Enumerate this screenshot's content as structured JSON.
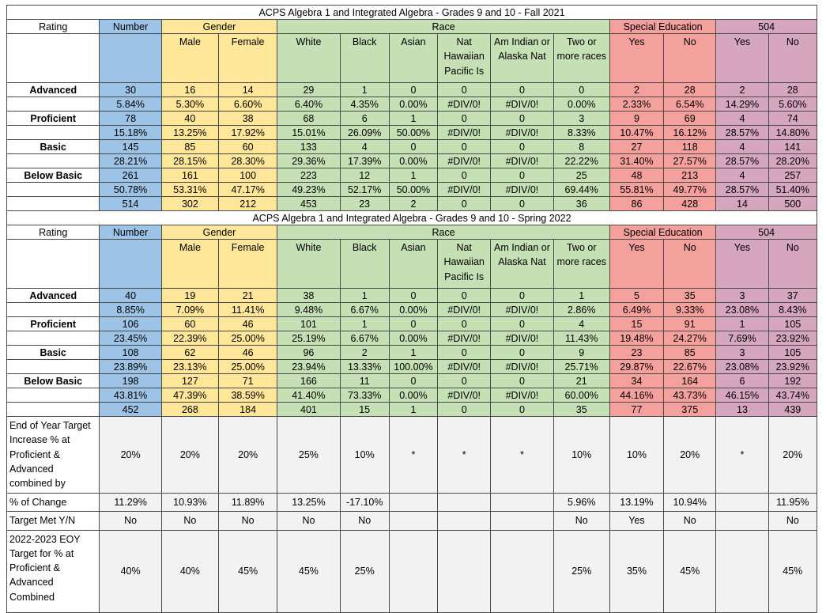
{
  "columns": [
    "Number",
    "Male",
    "Female",
    "White",
    "Black",
    "Asian",
    "Nat Hawaiian Pacific Is",
    "Am Indian or Alaska Nat",
    "Two or more races",
    "Yes",
    "No",
    "Yes",
    "No"
  ],
  "groups": {
    "rating": "Rating",
    "number": "Number",
    "gender": "Gender",
    "race": "Race",
    "sped": "Special Education",
    "s504": "504"
  },
  "subheads": {
    "male": "Male",
    "female": "Female",
    "white": "White",
    "black": "Black",
    "asian": "Asian",
    "nathaw": "Nat Hawaiian Pacific Is",
    "amind": "Am Indian or Alaska Nat",
    "two": "Two or more races",
    "sped_yes": "Yes",
    "sped_no": "No",
    "s504_yes": "Yes",
    "s504_no": "No"
  },
  "sections": [
    {
      "title": "ACPS Algebra 1 and Integrated Algebra - Grades 9 and 10 - Fall 2021",
      "ratings": [
        {
          "label": "Advanced",
          "count": [
            "30",
            "16",
            "14",
            "29",
            "1",
            "0",
            "0",
            "0",
            "0",
            "2",
            "28",
            "2",
            "28"
          ],
          "pct": [
            "5.84%",
            "5.30%",
            "6.60%",
            "6.40%",
            "4.35%",
            "0.00%",
            "#DIV/0!",
            "#DIV/0!",
            "0.00%",
            "2.33%",
            "6.54%",
            "14.29%",
            "5.60%"
          ]
        },
        {
          "label": "Proficient",
          "count": [
            "78",
            "40",
            "38",
            "68",
            "6",
            "1",
            "0",
            "0",
            "3",
            "9",
            "69",
            "4",
            "74"
          ],
          "pct": [
            "15.18%",
            "13.25%",
            "17.92%",
            "15.01%",
            "26.09%",
            "50.00%",
            "#DIV/0!",
            "#DIV/0!",
            "8.33%",
            "10.47%",
            "16.12%",
            "28.57%",
            "14.80%"
          ]
        },
        {
          "label": "Basic",
          "count": [
            "145",
            "85",
            "60",
            "133",
            "4",
            "0",
            "0",
            "0",
            "8",
            "27",
            "118",
            "4",
            "141"
          ],
          "pct": [
            "28.21%",
            "28.15%",
            "28.30%",
            "29.36%",
            "17.39%",
            "0.00%",
            "#DIV/0!",
            "#DIV/0!",
            "22.22%",
            "31.40%",
            "27.57%",
            "28.57%",
            "28.20%"
          ]
        },
        {
          "label": "Below Basic",
          "count": [
            "261",
            "161",
            "100",
            "223",
            "12",
            "1",
            "0",
            "0",
            "25",
            "48",
            "213",
            "4",
            "257"
          ],
          "pct": [
            "50.78%",
            "53.31%",
            "47.17%",
            "49.23%",
            "52.17%",
            "50.00%",
            "#DIV/0!",
            "#DIV/0!",
            "69.44%",
            "55.81%",
            "49.77%",
            "28.57%",
            "51.40%"
          ]
        }
      ],
      "totals": [
        "514",
        "302",
        "212",
        "453",
        "23",
        "2",
        "0",
        "0",
        "36",
        "86",
        "428",
        "14",
        "500"
      ]
    },
    {
      "title": "ACPS Algebra 1 and Integrated Algebra - Grades 9 and 10 - Spring 2022",
      "ratings": [
        {
          "label": "Advanced",
          "count": [
            "40",
            "19",
            "21",
            "38",
            "1",
            "0",
            "0",
            "0",
            "1",
            "5",
            "35",
            "3",
            "37"
          ],
          "pct": [
            "8.85%",
            "7.09%",
            "11.41%",
            "9.48%",
            "6.67%",
            "0.00%",
            "#DIV/0!",
            "#DIV/0!",
            "2.86%",
            "6.49%",
            "9.33%",
            "23.08%",
            "8.43%"
          ]
        },
        {
          "label": "Proficient",
          "count": [
            "106",
            "60",
            "46",
            "101",
            "1",
            "0",
            "0",
            "0",
            "4",
            "15",
            "91",
            "1",
            "105"
          ],
          "pct": [
            "23.45%",
            "22.39%",
            "25.00%",
            "25.19%",
            "6.67%",
            "0.00%",
            "#DIV/0!",
            "#DIV/0!",
            "11.43%",
            "19.48%",
            "24.27%",
            "7.69%",
            "23.92%"
          ]
        },
        {
          "label": "Basic",
          "count": [
            "108",
            "62",
            "46",
            "96",
            "2",
            "1",
            "0",
            "0",
            "9",
            "23",
            "85",
            "3",
            "105"
          ],
          "pct": [
            "23.89%",
            "23.13%",
            "25.00%",
            "23.94%",
            "13.33%",
            "100.00%",
            "#DIV/0!",
            "#DIV/0!",
            "25.71%",
            "29.87%",
            "22.67%",
            "23.08%",
            "23.92%"
          ]
        },
        {
          "label": "Below Basic",
          "count": [
            "198",
            "127",
            "71",
            "166",
            "11",
            "0",
            "0",
            "0",
            "21",
            "34",
            "164",
            "6",
            "192"
          ],
          "pct": [
            "43.81%",
            "47.39%",
            "38.59%",
            "41.40%",
            "73.33%",
            "0.00%",
            "#DIV/0!",
            "#DIV/0!",
            "60.00%",
            "44.16%",
            "43.73%",
            "46.15%",
            "43.74%"
          ]
        }
      ],
      "totals": [
        "452",
        "268",
        "184",
        "401",
        "15",
        "1",
        "0",
        "0",
        "35",
        "77",
        "375",
        "13",
        "439"
      ]
    }
  ],
  "footer": [
    {
      "label": "End of Year Target Increase % at Proficient & Advanced combined  by",
      "values": [
        "20%",
        "20%",
        "20%",
        "25%",
        "10%",
        "*",
        "*",
        "*",
        "10%",
        "10%",
        "20%",
        "*",
        "20%"
      ]
    },
    {
      "label": "% of Change",
      "values": [
        "11.29%",
        "10.93%",
        "11.89%",
        "13.25%",
        "-17.10%",
        "",
        "",
        "",
        "5.96%",
        "13.19%",
        "10.94%",
        "",
        "11.95%"
      ]
    },
    {
      "label": "Target Met  Y/N",
      "values": [
        "No",
        "No",
        "No",
        "No",
        "No",
        "",
        "",
        "",
        "No",
        "Yes",
        "No",
        "",
        "No"
      ]
    },
    {
      "label": "2022-2023 EOY Target for % at Proficient & Advanced Combined",
      "values": [
        "40%",
        "40%",
        "45%",
        "45%",
        "25%",
        "",
        "",
        "",
        "25%",
        "35%",
        "45%",
        "",
        "45%"
      ]
    }
  ]
}
